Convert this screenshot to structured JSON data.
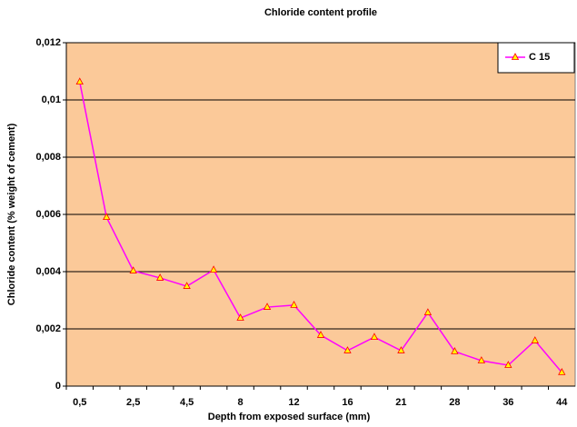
{
  "chart_data": {
    "type": "line",
    "title": "Chloride content profile",
    "x_label": "Depth from exposed surface  (mm)",
    "y_label": "Chloride content (% weight of cement)",
    "categories": [
      "0,5",
      null,
      "2,5",
      null,
      "4,5",
      null,
      "8",
      null,
      "12",
      null,
      "16",
      null,
      "21",
      null,
      "28",
      null,
      "36",
      null,
      "44"
    ],
    "series": [
      {
        "name": "C 15",
        "color": "#ff00ff",
        "marker_fill": "#ffff00",
        "marker_edge": "#ff0000",
        "values": [
          0.01063,
          0.0059,
          0.00403,
          0.00378,
          0.00349,
          0.00406,
          0.00238,
          0.00276,
          0.00283,
          0.00178,
          0.00124,
          0.00171,
          0.00124,
          0.00257,
          0.00121,
          0.00089,
          0.00073,
          0.00159,
          0.00048
        ]
      }
    ],
    "ylim": [
      0,
      0.012
    ],
    "yticks": [
      0,
      {
        "value": 0.002,
        "label": "0,002"
      },
      {
        "value": 0.004,
        "label": "0,004"
      },
      {
        "value": 0.006,
        "label": "0,006"
      },
      {
        "value": 0.008,
        "label": "0,008"
      },
      {
        "value": 0.01,
        "label": "0,01"
      },
      {
        "value": 0.012,
        "label": "0,012"
      }
    ],
    "grid": true,
    "plot_background": "#fbc999",
    "legend": "top-right"
  }
}
